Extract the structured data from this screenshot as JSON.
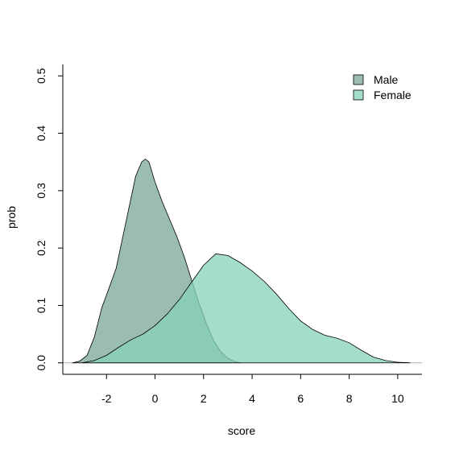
{
  "chart_data": {
    "type": "area",
    "title": "",
    "xlabel": "score",
    "ylabel": "prob",
    "xlim": [
      -3.8,
      11.0
    ],
    "ylim": [
      -0.02,
      0.52
    ],
    "x_ticks": [
      -2,
      0,
      2,
      4,
      6,
      8,
      10
    ],
    "y_ticks": [
      0.0,
      0.1,
      0.2,
      0.3,
      0.4,
      0.5
    ],
    "x_tick_labels": [
      "-2",
      "0",
      "2",
      "4",
      "6",
      "8",
      "10"
    ],
    "y_tick_labels": [
      "0.0",
      "0.1",
      "0.2",
      "0.3",
      "0.4",
      "0.5"
    ],
    "grid": false,
    "legend_position": "top-right",
    "baseline": 0,
    "series": [
      {
        "name": "Male",
        "color": "#8fb5a8",
        "points": [
          [
            -3.4,
            0.0
          ],
          [
            -3.1,
            0.003
          ],
          [
            -2.8,
            0.013
          ],
          [
            -2.5,
            0.045
          ],
          [
            -2.2,
            0.095
          ],
          [
            -1.9,
            0.13
          ],
          [
            -1.6,
            0.165
          ],
          [
            -1.3,
            0.225
          ],
          [
            -1.0,
            0.285
          ],
          [
            -0.8,
            0.325
          ],
          [
            -0.55,
            0.35
          ],
          [
            -0.4,
            0.355
          ],
          [
            -0.25,
            0.35
          ],
          [
            0.0,
            0.315
          ],
          [
            0.3,
            0.28
          ],
          [
            0.6,
            0.25
          ],
          [
            0.9,
            0.22
          ],
          [
            1.2,
            0.185
          ],
          [
            1.5,
            0.145
          ],
          [
            1.8,
            0.105
          ],
          [
            2.1,
            0.07
          ],
          [
            2.4,
            0.04
          ],
          [
            2.7,
            0.02
          ],
          [
            3.0,
            0.008
          ],
          [
            3.3,
            0.002
          ],
          [
            3.5,
            0.0
          ]
        ]
      },
      {
        "name": "Female",
        "color": "#86d2ba",
        "points": [
          [
            -3.0,
            0.0
          ],
          [
            -2.5,
            0.004
          ],
          [
            -2.0,
            0.013
          ],
          [
            -1.5,
            0.027
          ],
          [
            -1.0,
            0.04
          ],
          [
            -0.5,
            0.05
          ],
          [
            0.0,
            0.065
          ],
          [
            0.5,
            0.085
          ],
          [
            1.0,
            0.11
          ],
          [
            1.5,
            0.14
          ],
          [
            2.0,
            0.17
          ],
          [
            2.5,
            0.19
          ],
          [
            3.0,
            0.187
          ],
          [
            3.5,
            0.175
          ],
          [
            4.0,
            0.16
          ],
          [
            4.5,
            0.142
          ],
          [
            5.0,
            0.12
          ],
          [
            5.5,
            0.095
          ],
          [
            6.0,
            0.073
          ],
          [
            6.5,
            0.058
          ],
          [
            7.0,
            0.048
          ],
          [
            7.5,
            0.043
          ],
          [
            8.0,
            0.035
          ],
          [
            8.5,
            0.022
          ],
          [
            9.0,
            0.01
          ],
          [
            9.5,
            0.004
          ],
          [
            10.0,
            0.001
          ],
          [
            10.5,
            0.0
          ]
        ]
      }
    ]
  }
}
